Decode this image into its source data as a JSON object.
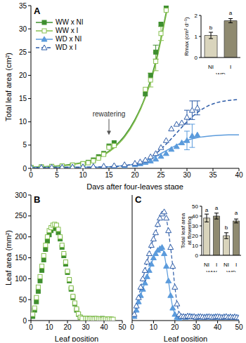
{
  "chart_data": [
    {
      "type": "scatter",
      "title": "A",
      "x_label": "Days after four-leaves stage",
      "y_label": "Total leaf area (cm²)",
      "xlim": [
        0,
        40
      ],
      "xticks": [
        0,
        5,
        10,
        15,
        20,
        25,
        30,
        35,
        40
      ],
      "ylim": [
        0,
        35
      ],
      "yticks": [
        0,
        5,
        10,
        15,
        20,
        25,
        30,
        35
      ],
      "legend": "upper left",
      "annotations": [
        {
          "text": "rewatering",
          "x": 15,
          "y": 7
        }
      ],
      "series": [
        {
          "name": "WW x NI",
          "color": "#3f8f2f",
          "marker": "square",
          "line_style": "solid",
          "x": [
            0,
            2,
            4,
            6,
            8,
            10,
            11,
            12,
            13,
            14,
            15,
            16,
            22,
            23,
            24,
            25,
            26
          ],
          "values": [
            0.2,
            0.3,
            0.4,
            0.5,
            0.7,
            1.0,
            1.3,
            1.8,
            2.5,
            3.2,
            4.8,
            5.5,
            16,
            20,
            25,
            31,
            34.5
          ],
          "error": [
            null,
            null,
            null,
            null,
            null,
            null,
            null,
            null,
            null,
            null,
            null,
            null,
            null,
            null,
            1.5,
            null,
            null
          ],
          "fit": {
            "x": [
              0,
              4,
              8,
              12,
              16,
              18,
              20,
              22,
              24,
              25,
              26,
              26.3
            ],
            "values": [
              0.25,
              0.45,
              0.9,
              1.9,
              4.6,
              7,
              10.5,
              15.5,
              23,
              28,
              33.5,
              35
            ]
          }
        },
        {
          "name": "WW x I",
          "color": "#86c04f",
          "marker": "square_open",
          "line_style": "solid",
          "x": [
            0,
            2,
            4,
            6,
            8,
            10,
            11,
            12,
            13,
            14,
            15,
            16,
            22,
            23,
            24,
            25,
            26
          ],
          "values": [
            0.2,
            0.3,
            0.4,
            0.5,
            0.7,
            1.0,
            1.2,
            1.6,
            2.2,
            3.0,
            4.5,
            4.9,
            17,
            19,
            23,
            29,
            34
          ],
          "error": [
            null,
            null,
            null,
            null,
            null,
            null,
            null,
            null,
            null,
            null,
            null,
            null,
            null,
            1.5,
            2,
            1.5,
            null
          ],
          "fit": {
            "x": [
              0,
              4,
              8,
              12,
              16,
              18,
              20,
              22,
              24,
              25,
              26,
              26.3
            ],
            "values": [
              0.2,
              0.4,
              0.8,
              1.8,
              4.4,
              6.7,
              10.2,
              15.2,
              22.5,
              27.5,
              33,
              34.5
            ]
          }
        },
        {
          "name": "WD x NI",
          "color": "#5b9bdc",
          "marker": "triangle",
          "line_style": "solid",
          "x": [
            0,
            2,
            4,
            6,
            8,
            10,
            12,
            14,
            16,
            18,
            20,
            21,
            22,
            23,
            24,
            25,
            26,
            27,
            28,
            29,
            30,
            31,
            32
          ],
          "values": [
            0.2,
            0.2,
            0.2,
            0.25,
            0.3,
            0.3,
            0.35,
            0.4,
            0.5,
            0.6,
            0.8,
            1,
            1.3,
            1.6,
            2,
            2.6,
            3.2,
            4.1,
            4.7,
            5.5,
            6,
            7,
            7.2
          ],
          "error": [
            null,
            null,
            null,
            null,
            null,
            null,
            null,
            null,
            null,
            null,
            null,
            null,
            null,
            null,
            null,
            null,
            null,
            null,
            null,
            null,
            2,
            2.5,
            null
          ],
          "fit": {
            "x": [
              0,
              10,
              15,
              18,
              20,
              22,
              24,
              26,
              28,
              30,
              32,
              34,
              36,
              38,
              40
            ],
            "values": [
              0.2,
              0.25,
              0.35,
              0.6,
              0.9,
              1.6,
              2.6,
              3.8,
              5,
              6,
              6.6,
              6.9,
              7.1,
              7.2,
              7.2
            ]
          }
        },
        {
          "name": "WD x I",
          "color": "#2b5aa6",
          "marker": "triangle_open",
          "line_style": "dashed",
          "x": [
            0,
            2,
            4,
            6,
            8,
            10,
            12,
            14,
            16,
            18,
            20,
            21,
            22,
            23,
            24,
            25,
            26,
            27,
            28,
            29,
            30,
            31,
            32
          ],
          "values": [
            0.2,
            0.2,
            0.25,
            0.25,
            0.3,
            0.35,
            0.4,
            0.5,
            0.6,
            0.8,
            1.1,
            1.4,
            1.8,
            2.5,
            3.2,
            4.5,
            6,
            8.5,
            9.5,
            9.8,
            11,
            12.5,
            13
          ],
          "error": [
            null,
            null,
            null,
            null,
            null,
            null,
            null,
            null,
            null,
            null,
            null,
            null,
            null,
            null,
            null,
            null,
            null,
            null,
            null,
            null,
            1.5,
            2,
            1.5
          ],
          "fit": {
            "x": [
              0,
              10,
              15,
              18,
              20,
              22,
              24,
              26,
              28,
              30,
              32,
              34,
              36,
              38,
              40
            ],
            "values": [
              0.2,
              0.25,
              0.35,
              0.6,
              1,
              1.8,
              3.2,
              5.2,
              7.6,
              10,
              12,
              13.4,
              14.2,
              14.6,
              14.8
            ]
          }
        }
      ],
      "inset": {
        "type": "bar",
        "y_label": "Rmax (cm² d⁻¹)",
        "categories": [
          "NI",
          "I"
        ],
        "groups": [
          "WD",
          "WD"
        ],
        "values": [
          1.05,
          1.75
        ],
        "error": [
          0.15,
          0.1
        ],
        "annotations": [
          "b",
          "a"
        ],
        "colors": [
          "#d9d4bc",
          "#8f8a70"
        ],
        "ylim": [
          0,
          2
        ],
        "yticks": [
          0,
          1,
          2
        ]
      }
    },
    {
      "type": "scatter",
      "title": "B",
      "x_label": "Leaf position",
      "y_label": "Leaf area (mm²)",
      "xlim": [
        0,
        50
      ],
      "xticks": [
        0,
        10,
        20,
        30,
        40,
        50
      ],
      "ylim": [
        0,
        300
      ],
      "yticks": [
        0,
        50,
        100,
        150,
        200,
        250,
        300
      ],
      "series": [
        {
          "name": "WW x NI",
          "color": "#3f8f2f",
          "marker": "square",
          "line_style": "none",
          "x": [
            1,
            2,
            3,
            4,
            5,
            6,
            7,
            8,
            9,
            10,
            11,
            12,
            13,
            14,
            15,
            16,
            17,
            18,
            19,
            20,
            21,
            22,
            23,
            24,
            25,
            26,
            27,
            28,
            30,
            31,
            32,
            33,
            34,
            35,
            36,
            37,
            38,
            39,
            40,
            41,
            42,
            43,
            44
          ],
          "values": [
            10,
            25,
            45,
            70,
            95,
            120,
            145,
            170,
            190,
            205,
            215,
            220,
            225,
            220,
            210,
            195,
            175,
            155,
            135,
            115,
            95,
            75,
            55,
            40,
            25,
            15,
            8,
            5,
            5,
            4,
            5,
            4,
            4,
            5,
            4,
            3,
            4,
            5,
            4,
            3,
            4,
            3,
            3
          ]
        },
        {
          "name": "WW x I",
          "color": "#86c04f",
          "marker": "square_open",
          "line_style": "none",
          "x": [
            1,
            2,
            3,
            4,
            5,
            6,
            7,
            8,
            9,
            10,
            11,
            12,
            13,
            14,
            15,
            16,
            17,
            18,
            19,
            20,
            21,
            22,
            23,
            24,
            25,
            26,
            27,
            28,
            30,
            31,
            32,
            33,
            34,
            35,
            36,
            37,
            38,
            39,
            40,
            41,
            42,
            43,
            44,
            45
          ],
          "values": [
            15,
            30,
            55,
            80,
            105,
            130,
            155,
            180,
            200,
            215,
            222,
            228,
            230,
            228,
            218,
            200,
            180,
            160,
            140,
            118,
            98,
            78,
            58,
            42,
            28,
            16,
            8,
            5,
            5,
            5,
            4,
            5,
            4,
            4,
            5,
            4,
            4,
            3,
            4,
            4,
            3,
            4,
            3,
            3
          ]
        }
      ]
    },
    {
      "type": "line",
      "title": "C",
      "x_label": "Leaf position",
      "tick_labels": "x",
      "xlim": [
        0,
        50
      ],
      "xticks": [
        0,
        10,
        20,
        30,
        40,
        50
      ],
      "ylim": [
        0,
        300
      ],
      "yticks": [
        0,
        50,
        100,
        150,
        200,
        250,
        300
      ],
      "series": [
        {
          "name": "WD x NI",
          "color": "#5b9bdc",
          "marker": "triangle",
          "line_style": "solid",
          "x": [
            1,
            2,
            3,
            4,
            5,
            6,
            7,
            8,
            9,
            10,
            11,
            12,
            13,
            14,
            15,
            16,
            17,
            18,
            19,
            20,
            21,
            22,
            23,
            24,
            25,
            26,
            27,
            28,
            29,
            30,
            31,
            32,
            33,
            34,
            35,
            36,
            37,
            38,
            39,
            40,
            41,
            42,
            43,
            44,
            45,
            46,
            47,
            48,
            49,
            50
          ],
          "values": [
            10,
            25,
            45,
            60,
            75,
            90,
            105,
            120,
            135,
            150,
            160,
            168,
            172,
            175,
            160,
            130,
            95,
            60,
            30,
            15,
            8,
            5,
            9,
            10,
            8,
            9,
            11,
            10,
            9,
            8,
            10,
            9,
            8,
            9,
            10,
            9,
            8,
            9,
            10,
            8,
            9,
            8,
            9,
            10,
            8,
            9,
            8,
            9,
            8,
            7
          ]
        },
        {
          "name": "WD x I",
          "color": "#2b5aa6",
          "marker": "triangle_open",
          "line_style": "dashed",
          "x": [
            1,
            2,
            3,
            4,
            5,
            6,
            7,
            8,
            9,
            10,
            11,
            12,
            13,
            14,
            15,
            16,
            17,
            18,
            19,
            20,
            21,
            22,
            23,
            24,
            25,
            26,
            27,
            28,
            29,
            30,
            31,
            32,
            33,
            34,
            35,
            36,
            37,
            38,
            39,
            40,
            41,
            42,
            43,
            44,
            45,
            46,
            47,
            48,
            49,
            50
          ],
          "values": [
            15,
            35,
            55,
            80,
            100,
            120,
            140,
            160,
            180,
            195,
            210,
            230,
            245,
            255,
            260,
            245,
            215,
            175,
            130,
            80,
            40,
            15,
            10,
            10,
            9,
            11,
            10,
            9,
            10,
            8,
            9,
            10,
            9,
            8,
            9,
            10,
            9,
            8,
            9,
            10,
            9,
            8,
            9,
            10,
            8,
            9,
            8,
            9,
            8,
            7
          ]
        }
      ],
      "inset": {
        "type": "bar",
        "y_label": "Total leaf area at flowering",
        "categories": [
          "NI",
          "I",
          "NI",
          "I"
        ],
        "groups": [
          "WW",
          "WW",
          "WD",
          "WD"
        ],
        "values": [
          38,
          40,
          20,
          35
        ],
        "error": [
          4,
          3,
          3,
          2
        ],
        "annotations": [
          "a",
          "a",
          "b",
          "a"
        ],
        "colors": [
          "#d9d4bc",
          "#8f8a70",
          "#d9d4bc",
          "#8f8a70"
        ],
        "ylim": [
          0,
          50
        ],
        "yticks": [
          0,
          10,
          20,
          30,
          40,
          50
        ]
      }
    }
  ]
}
